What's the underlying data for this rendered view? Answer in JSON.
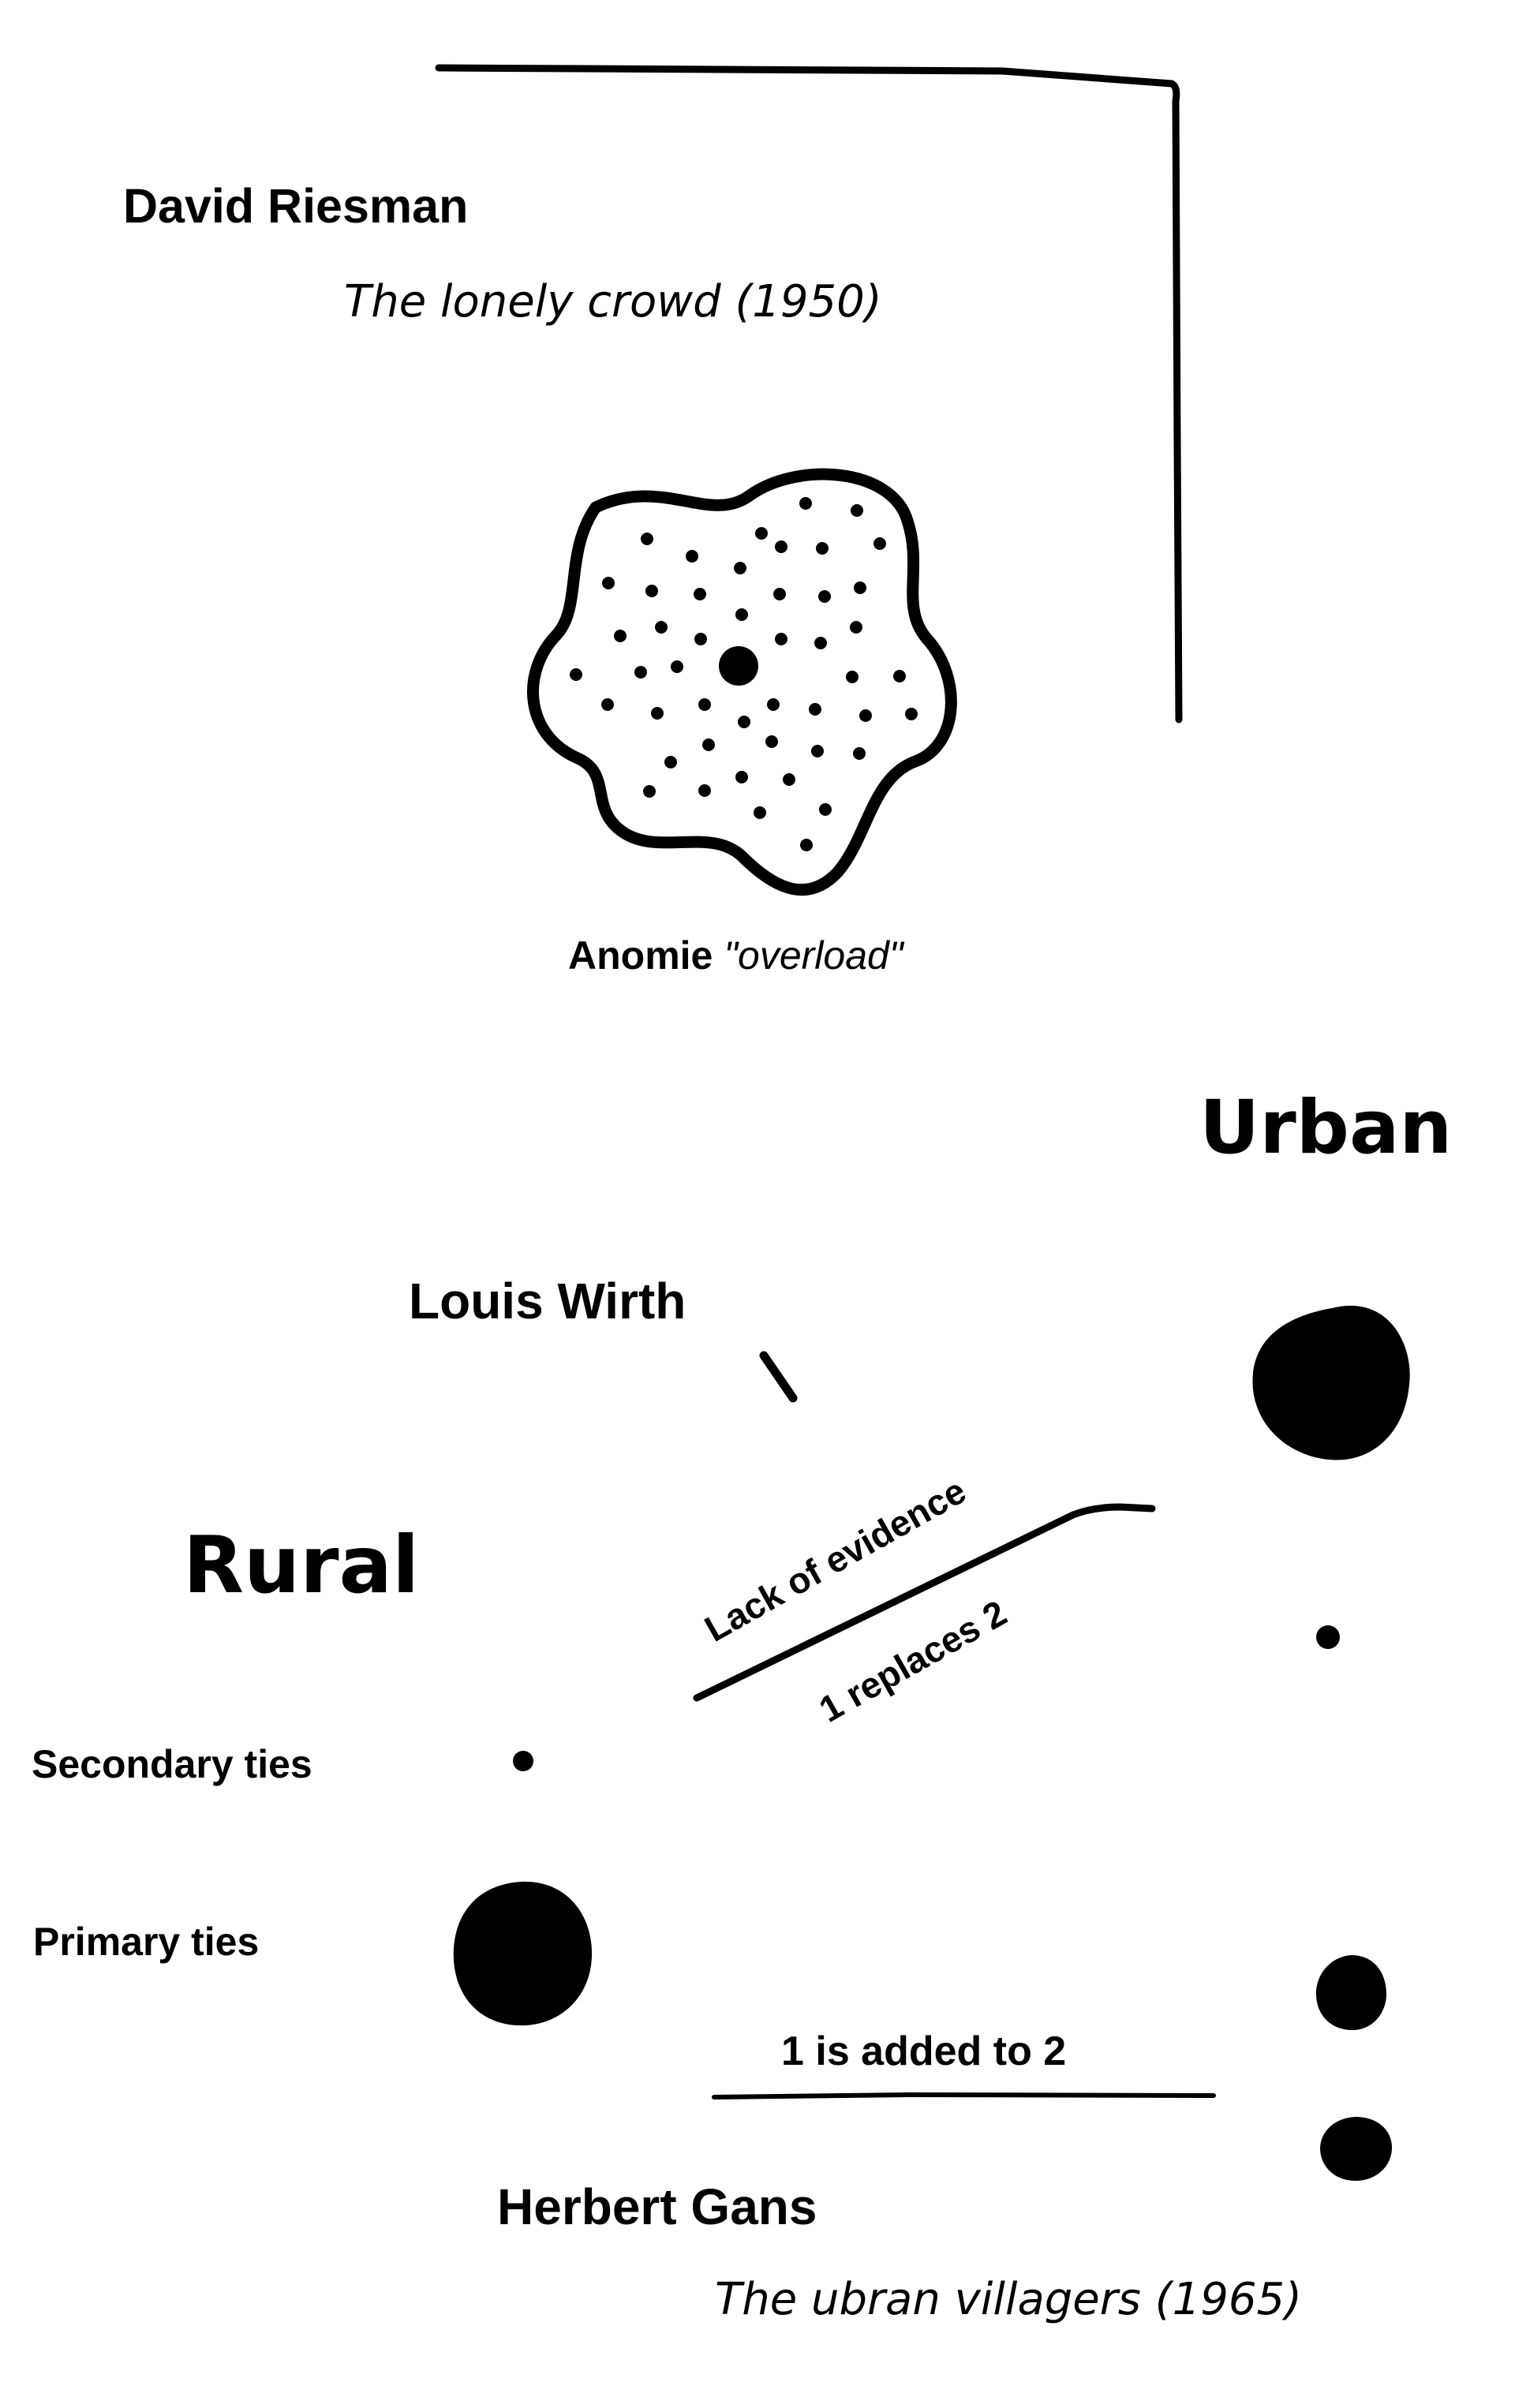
{
  "riesman": {
    "name": "David Riesman",
    "work": "The lonely crowd (1950)"
  },
  "anomie": {
    "term": "Anomie",
    "qualifier": "\"overload\""
  },
  "urban_label": "Urban",
  "rural_label": "Rural",
  "wirth": {
    "name": "Louis Wirth",
    "note_top": "Lack of evidence",
    "note_bottom": "1 replaces 2"
  },
  "legend": {
    "secondary": "Secondary ties",
    "primary": "Primary ties"
  },
  "gans": {
    "note": "1 is added to 2",
    "name": "Herbert Gans",
    "work": "The ubran villagers (1965)"
  }
}
